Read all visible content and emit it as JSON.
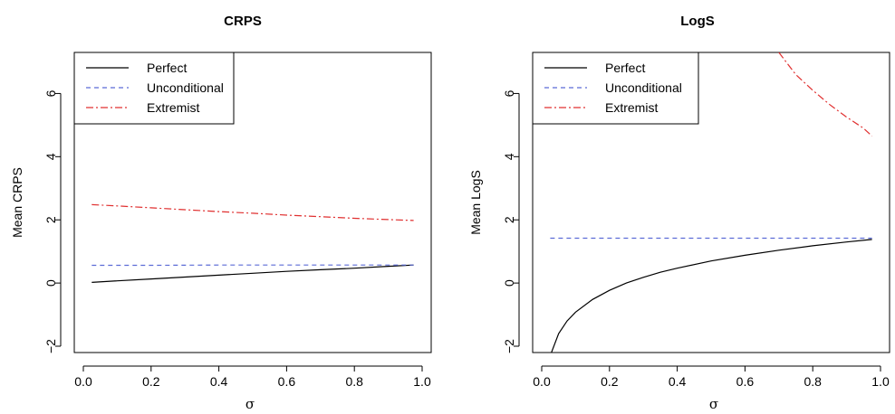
{
  "chart_data": [
    {
      "type": "line",
      "title": "CRPS",
      "xlabel": "σ",
      "ylabel": "Mean CRPS",
      "xlim": [
        0.0,
        1.0
      ],
      "ylim": [
        -2.2,
        7.3
      ],
      "x_ticks": [
        0.0,
        0.2,
        0.4,
        0.6,
        0.8,
        1.0
      ],
      "x_tick_labels": [
        "0.0",
        "0.2",
        "0.4",
        "0.6",
        "0.8",
        "1.0"
      ],
      "y_ticks": [
        -2,
        0,
        2,
        4,
        6
      ],
      "y_tick_labels": [
        "−2",
        "0",
        "2",
        "4",
        "6"
      ],
      "legend_position": "top-left",
      "series": [
        {
          "name": "Perfect",
          "color": "#000000",
          "dash": "solid",
          "x": [
            0.025,
            0.1,
            0.2,
            0.3,
            0.4,
            0.5,
            0.6,
            0.7,
            0.8,
            0.9,
            0.975
          ],
          "y": [
            0.02,
            0.07,
            0.13,
            0.19,
            0.25,
            0.31,
            0.37,
            0.42,
            0.47,
            0.53,
            0.57
          ]
        },
        {
          "name": "Unconditional",
          "color": "#5b6bd6",
          "dash": "dashed",
          "x": [
            0.025,
            0.2,
            0.4,
            0.6,
            0.8,
            0.975
          ],
          "y": [
            0.56,
            0.56,
            0.57,
            0.57,
            0.57,
            0.57
          ]
        },
        {
          "name": "Extremist",
          "color": "#e03030",
          "dash": "dashdot",
          "x": [
            0.025,
            0.1,
            0.2,
            0.3,
            0.4,
            0.5,
            0.6,
            0.7,
            0.8,
            0.9,
            0.975
          ],
          "y": [
            2.48,
            2.44,
            2.38,
            2.32,
            2.26,
            2.21,
            2.15,
            2.1,
            2.05,
            2.01,
            1.98
          ]
        }
      ]
    },
    {
      "type": "line",
      "title": "LogS",
      "xlabel": "σ",
      "ylabel": "Mean LogS",
      "xlim": [
        0.0,
        1.0
      ],
      "ylim": [
        -2.2,
        7.3
      ],
      "x_ticks": [
        0.0,
        0.2,
        0.4,
        0.6,
        0.8,
        1.0
      ],
      "x_tick_labels": [
        "0.0",
        "0.2",
        "0.4",
        "0.6",
        "0.8",
        "1.0"
      ],
      "y_ticks": [
        -2,
        0,
        2,
        4,
        6
      ],
      "y_tick_labels": [
        "−2",
        "0",
        "2",
        "4",
        "6"
      ],
      "legend_position": "top-left",
      "series": [
        {
          "name": "Perfect",
          "color": "#000000",
          "dash": "solid",
          "x": [
            0.025,
            0.05,
            0.075,
            0.1,
            0.15,
            0.2,
            0.25,
            0.3,
            0.35,
            0.4,
            0.5,
            0.6,
            0.7,
            0.8,
            0.9,
            0.975
          ],
          "y": [
            -2.3,
            -1.6,
            -1.2,
            -0.92,
            -0.52,
            -0.23,
            0.0,
            0.18,
            0.34,
            0.47,
            0.7,
            0.88,
            1.04,
            1.18,
            1.3,
            1.38
          ]
        },
        {
          "name": "Unconditional",
          "color": "#5b6bd6",
          "dash": "dashed",
          "x": [
            0.025,
            0.2,
            0.4,
            0.6,
            0.8,
            0.975
          ],
          "y": [
            1.42,
            1.42,
            1.42,
            1.42,
            1.42,
            1.42
          ]
        },
        {
          "name": "Extremist",
          "color": "#e03030",
          "dash": "dashdot",
          "x": [
            0.7,
            0.75,
            0.8,
            0.85,
            0.9,
            0.95,
            0.975
          ],
          "y": [
            7.3,
            6.6,
            6.1,
            5.65,
            5.25,
            4.9,
            4.65
          ]
        }
      ]
    }
  ]
}
